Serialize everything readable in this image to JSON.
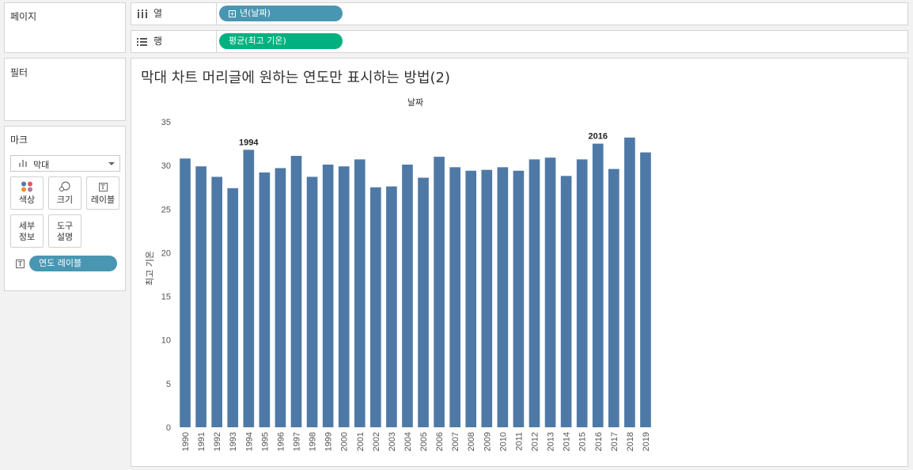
{
  "sidebar": {
    "pages_title": "페이지",
    "filters_title": "필터",
    "marks_title": "마크",
    "mark_type": "막대",
    "mark_buttons": {
      "color": "색상",
      "size": "크기",
      "label": "레이블",
      "detail": "세부\n정보",
      "tooltip": "도구\n설명"
    },
    "label_pill": "연도 레이블"
  },
  "shelves": {
    "columns_label": "열",
    "columns_pill": "년(날짜)",
    "rows_label": "행",
    "rows_pill": "평균(최고 기온)"
  },
  "view": {
    "title": "막대 차트 머리글에 원하는 연도만 표시하는 방법(2)"
  },
  "colors": {
    "bar": "#4e79a7",
    "pill_blue": "#4996b2",
    "pill_green": "#00b180"
  },
  "chart_data": {
    "type": "bar",
    "header_label": "날짜",
    "ylabel": "최고 기온",
    "ylim": [
      0,
      35
    ],
    "yticks": [
      "0",
      "5",
      "10",
      "15",
      "20",
      "25",
      "30",
      "35"
    ],
    "categories": [
      "1990",
      "1991",
      "1992",
      "1993",
      "1994",
      "1995",
      "1996",
      "1997",
      "1998",
      "1999",
      "2000",
      "2001",
      "2002",
      "2003",
      "2004",
      "2005",
      "2006",
      "2007",
      "2008",
      "2009",
      "2010",
      "2011",
      "2012",
      "2013",
      "2014",
      "2015",
      "2016",
      "2017",
      "2018",
      "2019"
    ],
    "values": [
      30.8,
      29.9,
      28.7,
      27.4,
      31.8,
      29.2,
      29.7,
      31.1,
      28.7,
      30.1,
      29.9,
      30.7,
      27.5,
      27.6,
      30.1,
      28.6,
      31.0,
      29.8,
      29.4,
      29.5,
      29.8,
      29.4,
      30.7,
      30.9,
      28.8,
      30.7,
      32.5,
      29.6,
      33.2,
      31.5
    ],
    "labels": [
      "",
      "",
      "",
      "",
      "1994",
      "",
      "",
      "",
      "",
      "",
      "",
      "",
      "",
      "",
      "",
      "",
      "",
      "",
      "",
      "",
      "",
      "",
      "",
      "",
      "",
      "",
      "2016",
      "",
      "",
      ""
    ]
  }
}
